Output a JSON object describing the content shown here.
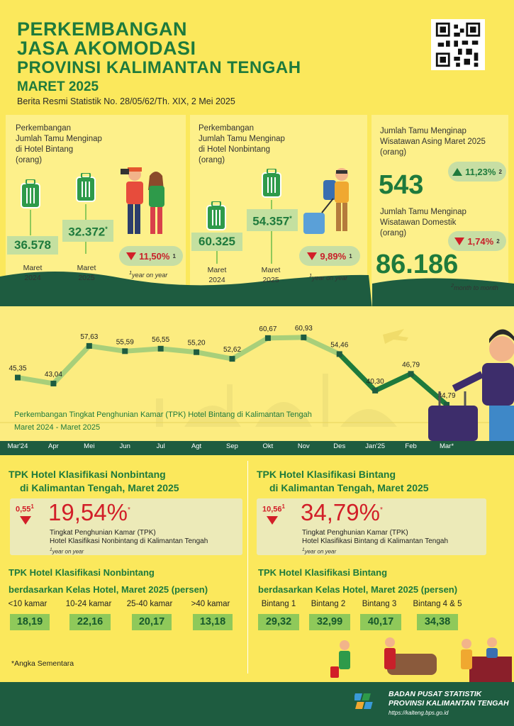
{
  "header": {
    "line1": "PERKEMBANGAN",
    "line2": "JASA AKOMODASI",
    "line3": "PROVINSI KALIMANTAN TENGAH",
    "period": "MARET 2025",
    "release": "Berita Resmi Statistik No. 28/05/62/Th. XIX, 2 Mei 2025"
  },
  "bintang": {
    "label": "Perkembangan\nJumlah Tamu Menginap\ndi Hotel Bintang\n(orang)",
    "items": [
      {
        "value": "36.578",
        "period": "Maret\n2024"
      },
      {
        "value": "32.372",
        "star": "*",
        "period": "Maret\n2025"
      }
    ],
    "change": "11,50%",
    "change_sup": "1",
    "note": "year on year",
    "note_sup": "1"
  },
  "nonbintang": {
    "label": "Perkembangan\nJumlah Tamu Menginap\ndi Hotel Nonbintang\n(orang)",
    "items": [
      {
        "value": "60.325",
        "period": "Maret\n2024"
      },
      {
        "value": "54.357",
        "star": "*",
        "period": "Maret\n2025"
      }
    ],
    "change": "9,89%",
    "change_sup": "1",
    "note": "year on year",
    "note_sup": "1"
  },
  "asing": {
    "label": "Jumlah Tamu Menginap\nWisatawan Asing Maret 2025\n(orang)",
    "value": "543",
    "change": "11,23%",
    "change_sup": "2"
  },
  "domestik": {
    "label": "Jumlah Tamu Menginap\nWisatawan Domestik\n(orang)",
    "value": "86.186",
    "change": "1,74%",
    "change_sup": "2",
    "note": "month to month",
    "note_sup": "2"
  },
  "chart_data": {
    "type": "line",
    "title": "Perkembangan Tingkat Penghunian Kamar (TPK) Hotel Bintang di Kalimantan Tengah",
    "subtitle": "Maret 2024 - Maret 2025",
    "categories": [
      "Mar'24",
      "Apr",
      "Mei",
      "Jun",
      "Jul",
      "Agt",
      "Sep",
      "Okt",
      "Nov",
      "Des",
      "Jan'25",
      "Feb",
      "Mar*"
    ],
    "values": [
      45.35,
      43.04,
      57.63,
      55.59,
      56.55,
      55.2,
      52.62,
      60.67,
      60.93,
      54.46,
      40.3,
      46.79,
      34.79
    ],
    "labels": [
      "45,35",
      "43,04",
      "57,63",
      "55,59",
      "56,55",
      "55,20",
      "52,62",
      "60,67",
      "60,93",
      "54,46",
      "40,30",
      "46,79",
      "34,79"
    ],
    "ylim": [
      30,
      65
    ],
    "grid": false
  },
  "tpk_nonbintang": {
    "title1": "TPK Hotel Klasifikasi Nonbintang",
    "title2": "di Kalimantan Tengah, Maret 2025",
    "change": "0,55",
    "change_sup": "1",
    "value": "19,54%",
    "value_star": "*",
    "desc1": "Tingkat Penghunian Kamar (TPK)",
    "desc2": "Hotel Klasifikasi Nonbintang di Kalimantan Tengah",
    "note": "year on year",
    "note_sup": "1",
    "class_title1": "TPK Hotel Klasifikasi Nonbintang",
    "class_title2": "berdasarkan Kelas Hotel, Maret 2025 (persen)",
    "classes": [
      {
        "label": "<10 kamar",
        "value": "18,19"
      },
      {
        "label": "10-24 kamar",
        "value": "22,16"
      },
      {
        "label": "25-40 kamar",
        "value": "20,17"
      },
      {
        "label": ">40 kamar",
        "value": "13,18"
      }
    ]
  },
  "tpk_bintang": {
    "title1": "TPK Hotel Klasifikasi Bintang",
    "title2": "di Kalimantan Tengah, Maret 2025",
    "change": "10,56",
    "change_sup": "1",
    "value": "34,79%",
    "value_star": "*",
    "desc1": "Tingkat Penghunian Kamar (TPK)",
    "desc2": "Hotel Klasifikasi Bintang di Kalimantan Tengah",
    "note": "year on year",
    "note_sup": "1",
    "class_title1": "TPK Hotel Klasifikasi Bintang",
    "class_title2": "berdasarkan Kelas Hotel, Maret 2025 (persen)",
    "classes": [
      {
        "label": "Bintang 1",
        "value": "29,32"
      },
      {
        "label": "Bintang 2",
        "value": "32,99"
      },
      {
        "label": "Bintang 3",
        "value": "40,17"
      },
      {
        "label": "Bintang 4 & 5",
        "value": "34,38"
      }
    ]
  },
  "footnote": "*Angka Sementara",
  "footer": {
    "org1": "BADAN PUSAT STATISTIK",
    "org2": "PROVINSI KALIMANTAN TENGAH",
    "url": "https://kalteng.bps.go.id"
  },
  "colors": {
    "green": "#1e7a3c",
    "red": "#d21f28",
    "yellow": "#fbe85c",
    "dark_green": "#1e5c40"
  }
}
